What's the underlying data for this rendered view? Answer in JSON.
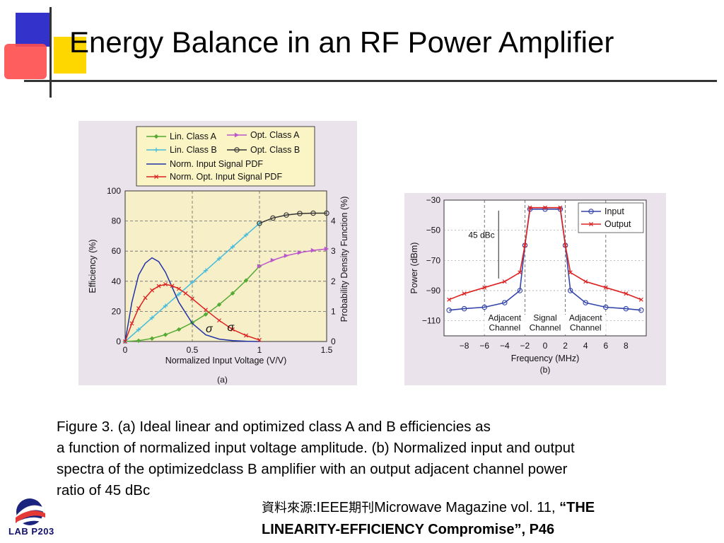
{
  "title": "Energy Balance in an RF Power Amplifier",
  "colors": {
    "accent_blue": "#3333cc",
    "accent_yellow": "#ffd700",
    "accent_red": "#ff3333",
    "panel_bg": "#ebe3ec",
    "plot_bg": "#f6efc8"
  },
  "chart_data": [
    {
      "type": "line",
      "subplot_label": "(a)",
      "xlabel": "Normalized Input Voltage (V/V)",
      "ylabel": "Efficiency (%)",
      "y2label": "Probability Density Function (%)",
      "xlim": [
        0,
        1.5
      ],
      "ylim": [
        0,
        100
      ],
      "y2lim": [
        0,
        5
      ],
      "xticks": [
        "0",
        "0.5",
        "1",
        "1.5"
      ],
      "yticks": [
        "0",
        "20",
        "40",
        "60",
        "80",
        "100"
      ],
      "y2ticks": [
        "0",
        "1",
        "2",
        "3",
        "4"
      ],
      "grid": true,
      "legend_position": "top, outside plot",
      "annotations": [
        "σ",
        "σ"
      ],
      "series": [
        {
          "name": "Lin. Class A",
          "color": "#55aa33",
          "marker": "diamond",
          "axis": "left",
          "x": [
            0,
            0.1,
            0.2,
            0.3,
            0.4,
            0.5,
            0.6,
            0.7,
            0.8,
            0.9,
            1.0
          ],
          "y": [
            0,
            0.5,
            2,
            4.5,
            8,
            12.5,
            18,
            24.5,
            32,
            40.5,
            50
          ]
        },
        {
          "name": "Lin. Class B",
          "color": "#44bbdd",
          "marker": "plus",
          "axis": "left",
          "x": [
            0,
            0.1,
            0.2,
            0.3,
            0.4,
            0.5,
            0.6,
            0.7,
            0.8,
            0.9,
            1.0
          ],
          "y": [
            0,
            7.85,
            15.7,
            23.6,
            31.4,
            39.3,
            47.1,
            55,
            62.8,
            70.7,
            78.5
          ]
        },
        {
          "name": "Opt. Class A",
          "color": "#bb55cc",
          "marker": "triangle-right",
          "axis": "left",
          "x": [
            1.0,
            1.1,
            1.2,
            1.3,
            1.4,
            1.5
          ],
          "y": [
            50,
            54,
            57,
            59,
            60.5,
            61.5
          ]
        },
        {
          "name": "Opt. Class B",
          "color": "#333333",
          "marker": "circle",
          "axis": "left",
          "x": [
            1.0,
            1.1,
            1.2,
            1.3,
            1.4,
            1.5
          ],
          "y": [
            78.5,
            82,
            84,
            85,
            85.2,
            85.2
          ]
        },
        {
          "name": "Norm. Input Signal PDF",
          "color": "#2233aa",
          "marker": "none",
          "axis": "right",
          "x": [
            0,
            0.05,
            0.1,
            0.15,
            0.2,
            0.25,
            0.3,
            0.35,
            0.4,
            0.5,
            0.6,
            0.7,
            0.8,
            0.9,
            1.0
          ],
          "y": [
            0,
            1.3,
            2.2,
            2.6,
            2.78,
            2.65,
            2.3,
            1.8,
            1.3,
            0.6,
            0.22,
            0.08,
            0.03,
            0.01,
            0
          ]
        },
        {
          "name": "Norm. Opt. Input Signal PDF",
          "color": "#dd2222",
          "marker": "cross",
          "axis": "right",
          "x": [
            0,
            0.05,
            0.1,
            0.15,
            0.2,
            0.25,
            0.3,
            0.35,
            0.4,
            0.45,
            0.5,
            0.6,
            0.7,
            0.8,
            0.9,
            1.0
          ],
          "y": [
            0,
            0.6,
            1.1,
            1.45,
            1.7,
            1.84,
            1.9,
            1.85,
            1.75,
            1.6,
            1.42,
            1.05,
            0.7,
            0.4,
            0.2,
            0.05
          ]
        }
      ]
    },
    {
      "type": "line",
      "subplot_label": "(b)",
      "xlabel": "Frequency (MHz)",
      "ylabel": "Power (dBm)",
      "xlim": [
        -10,
        10
      ],
      "ylim": [
        -120,
        -30
      ],
      "xticks": [
        "−8",
        "−6",
        "−4",
        "−2",
        "0",
        "2",
        "4",
        "6",
        "8"
      ],
      "yticks": [
        "−30",
        "−50",
        "−70",
        "−90",
        "−110"
      ],
      "grid": true,
      "legend_position": "top-right",
      "annotations": [
        "45 dBc"
      ],
      "region_labels": [
        {
          "line1": "Adjacent",
          "line2": "Channel"
        },
        {
          "line1": "Signal",
          "line2": "Channel"
        },
        {
          "line1": "Adjacent",
          "line2": "Channel"
        }
      ],
      "series": [
        {
          "name": "Input",
          "color": "#3344aa",
          "marker": "circle",
          "x": [
            -9.5,
            -8,
            -6,
            -4,
            -2.5,
            -2,
            -1.5,
            0,
            1.5,
            2,
            2.5,
            4,
            6,
            8,
            9.5
          ],
          "y": [
            -103,
            -102,
            -101,
            -98,
            -90,
            -60,
            -36,
            -36,
            -36,
            -60,
            -90,
            -98,
            -101,
            -102,
            -103
          ]
        },
        {
          "name": "Output",
          "color": "#dd2222",
          "marker": "cross",
          "x": [
            -9.5,
            -8,
            -6,
            -4,
            -2.5,
            -2,
            -1.5,
            0,
            1.5,
            2,
            2.5,
            4,
            6,
            8,
            9.5
          ],
          "y": [
            -96,
            -92,
            -88,
            -84,
            -78,
            -60,
            -35,
            -35,
            -35,
            -60,
            -78,
            -84,
            -88,
            -92,
            -96
          ]
        }
      ]
    }
  ],
  "caption": {
    "line1": "Figure 3. (a) Ideal linear  and optimized class A and B efficiencies as",
    "line2": "a function of normalized input voltage amplitude. (b) Normalized input and output",
    "line3": "spectra of the optimizedclass B amplifier with an output adjacent channel power",
    "line4": "ratio of 45 dBc"
  },
  "source": {
    "cjk_prefix": "資料來源",
    "text1": ":IEEE",
    "cjk_mid": "期刊",
    "text2": "Microwave Magazine vol. 11, ",
    "bold1": "“THE",
    "bold2": "LINEARITY-EFFICIENCY Compromise”, P46"
  },
  "logo": {
    "text": "LAB P203",
    "icon": "lab-logo-icon"
  }
}
